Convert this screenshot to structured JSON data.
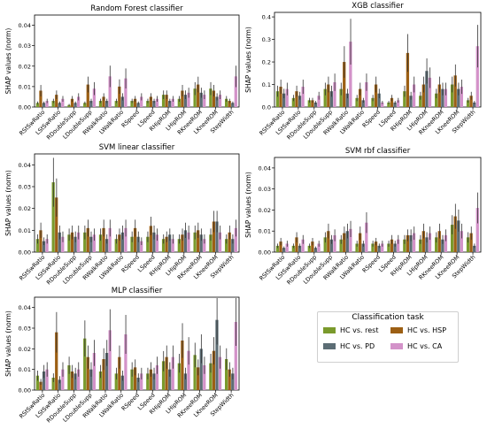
{
  "legend": {
    "title": "Classification task",
    "items": [
      {
        "label": "HC vs. rest",
        "color": "#7a9a2c"
      },
      {
        "label": "HC vs. HSP",
        "color": "#9c5f14"
      },
      {
        "label": "HC vs. PD",
        "color": "#5c6d75"
      },
      {
        "label": "HC vs. CA",
        "color": "#d392c9"
      }
    ]
  },
  "chart_data": [
    {
      "type": "bar",
      "title": "Random Forest classifier",
      "ylabel": "SHAP values (norm)",
      "ylim": [
        0,
        0.045
      ],
      "yticks": [
        0.0,
        0.01,
        0.02,
        0.03,
        0.04
      ],
      "categories": [
        "RStSwRatio",
        "LStSwRatio",
        "RDoubleSupp",
        "LDoubleSupp",
        "RWalkRatio",
        "LWalkRatio",
        "RSpeed",
        "LSpeed",
        "RHipROM",
        "LHipROM",
        "RKneeROM",
        "LKneeROM",
        "StepWidth"
      ],
      "series": [
        {
          "name": "HC vs. rest",
          "values": [
            0.002,
            0.003,
            0.001,
            0.002,
            0.003,
            0.003,
            0.003,
            0.003,
            0.006,
            0.004,
            0.009,
            0.009,
            0.004
          ]
        },
        {
          "name": "HC vs. HSP",
          "values": [
            0.008,
            0.006,
            0.004,
            0.011,
            0.005,
            0.01,
            0.004,
            0.005,
            0.006,
            0.008,
            0.011,
            0.008,
            0.003
          ]
        },
        {
          "name": "HC vs. PD",
          "values": [
            0.002,
            0.002,
            0.002,
            0.003,
            0.003,
            0.005,
            0.002,
            0.003,
            0.003,
            0.006,
            0.007,
            0.005,
            0.002
          ]
        },
        {
          "name": "HC vs. CA",
          "values": [
            0.003,
            0.004,
            0.005,
            0.009,
            0.015,
            0.014,
            0.005,
            0.004,
            0.004,
            0.007,
            0.006,
            0.006,
            0.015
          ]
        }
      ]
    },
    {
      "type": "bar",
      "title": "XGB classifier",
      "ylabel": "SHAP values (norm)",
      "ylim": [
        0,
        0.42
      ],
      "yticks": [
        0.0,
        0.1,
        0.2,
        0.3,
        0.4
      ],
      "categories": [
        "RStSwRatio",
        "LStSwRatio",
        "RDoubleSupp",
        "LDoubleSupp",
        "RWalkRatio",
        "LWalkRatio",
        "RSpeed",
        "LSpeed",
        "RHipROM",
        "LHipROM",
        "RKneeROM",
        "LKneeROM",
        "StepWidth"
      ],
      "series": [
        {
          "name": "HC vs. rest",
          "values": [
            0.07,
            0.04,
            0.03,
            0.08,
            0.08,
            0.04,
            0.04,
            0.02,
            0.07,
            0.05,
            0.06,
            0.1,
            0.03
          ]
        },
        {
          "name": "HC vs. HSP",
          "values": [
            0.09,
            0.07,
            0.03,
            0.1,
            0.2,
            0.08,
            0.1,
            0.04,
            0.24,
            0.1,
            0.1,
            0.14,
            0.05
          ]
        },
        {
          "name": "HC vs. PD",
          "values": [
            0.06,
            0.05,
            0.02,
            0.07,
            0.06,
            0.03,
            0.06,
            0.02,
            0.05,
            0.16,
            0.08,
            0.08,
            0.02
          ]
        },
        {
          "name": "HC vs. CA",
          "values": [
            0.08,
            0.09,
            0.05,
            0.11,
            0.29,
            0.11,
            0.02,
            0.03,
            0.1,
            0.13,
            0.08,
            0.09,
            0.27
          ]
        }
      ]
    },
    {
      "type": "bar",
      "title": "SVM linear classifier",
      "ylabel": "SHAP values (norm)",
      "ylim": [
        0,
        0.045
      ],
      "yticks": [
        0.0,
        0.01,
        0.02,
        0.03,
        0.04
      ],
      "categories": [
        "RStSwRatio",
        "LStSwRatio",
        "RDoubleSupp",
        "LDoubleSupp",
        "RWalkRatio",
        "LWalkRatio",
        "RSpeed",
        "LSpeed",
        "RHipROM",
        "LHipROM",
        "RKneeROM",
        "LKneeROM",
        "StepWidth"
      ],
      "series": [
        {
          "name": "HC vs. rest",
          "values": [
            0.006,
            0.032,
            0.008,
            0.009,
            0.008,
            0.006,
            0.007,
            0.007,
            0.006,
            0.006,
            0.009,
            0.008,
            0.006
          ]
        },
        {
          "name": "HC vs. HSP",
          "values": [
            0.01,
            0.025,
            0.009,
            0.011,
            0.011,
            0.008,
            0.011,
            0.012,
            0.007,
            0.008,
            0.01,
            0.014,
            0.009
          ]
        },
        {
          "name": "HC vs. PD",
          "values": [
            0.005,
            0.009,
            0.007,
            0.007,
            0.006,
            0.009,
            0.007,
            0.009,
            0.008,
            0.01,
            0.008,
            0.014,
            0.006
          ]
        },
        {
          "name": "HC vs. CA",
          "values": [
            0.006,
            0.007,
            0.009,
            0.008,
            0.011,
            0.011,
            0.005,
            0.008,
            0.006,
            0.009,
            0.006,
            0.009,
            0.011
          ]
        }
      ]
    },
    {
      "type": "bar",
      "title": "SVM rbf classifier",
      "ylabel": "SHAP values (norm)",
      "ylim": [
        0,
        0.045
      ],
      "yticks": [
        0.0,
        0.01,
        0.02,
        0.03,
        0.04
      ],
      "categories": [
        "RStSwRatio",
        "LStSwRatio",
        "RDoubleSupp",
        "LDoubleSupp",
        "RWalkRatio",
        "LWalkRatio",
        "RSpeed",
        "LSpeed",
        "RHipROM",
        "LHipROM",
        "RKneeROM",
        "LKneeROM",
        "StepWidth"
      ],
      "series": [
        {
          "name": "HC vs. rest",
          "values": [
            0.003,
            0.003,
            0.003,
            0.007,
            0.006,
            0.004,
            0.004,
            0.004,
            0.006,
            0.006,
            0.007,
            0.013,
            0.007
          ]
        },
        {
          "name": "HC vs. HSP",
          "values": [
            0.005,
            0.007,
            0.005,
            0.01,
            0.009,
            0.009,
            0.005,
            0.006,
            0.008,
            0.01,
            0.01,
            0.017,
            0.009
          ]
        },
        {
          "name": "HC vs. PD",
          "values": [
            0.002,
            0.003,
            0.002,
            0.006,
            0.01,
            0.004,
            0.003,
            0.004,
            0.008,
            0.007,
            0.006,
            0.015,
            0.003
          ]
        },
        {
          "name": "HC vs. CA",
          "values": [
            0.004,
            0.006,
            0.004,
            0.008,
            0.011,
            0.014,
            0.004,
            0.006,
            0.009,
            0.009,
            0.008,
            0.01,
            0.021
          ]
        }
      ]
    },
    {
      "type": "bar",
      "title": "MLP classifier",
      "ylabel": "SHAP values (norm)",
      "ylim": [
        0,
        0.045
      ],
      "yticks": [
        0.0,
        0.01,
        0.02,
        0.03,
        0.04
      ],
      "categories": [
        "RStSwRatio",
        "LStSwRatio",
        "RDoubleSupp",
        "LDoubleSupp",
        "RWalkRatio",
        "LWalkRatio",
        "RSpeed",
        "LSpeed",
        "RHipROM",
        "LHipROM",
        "RKneeROM",
        "LKneeROM",
        "StepWidth"
      ],
      "series": [
        {
          "name": "HC vs. rest",
          "values": [
            0.007,
            0.006,
            0.012,
            0.025,
            0.009,
            0.008,
            0.01,
            0.008,
            0.014,
            0.013,
            0.017,
            0.013,
            0.015
          ]
        },
        {
          "name": "HC vs. HSP",
          "values": [
            0.004,
            0.028,
            0.009,
            0.016,
            0.015,
            0.016,
            0.011,
            0.01,
            0.016,
            0.024,
            0.011,
            0.019,
            0.01
          ]
        },
        {
          "name": "HC vs. PD",
          "values": [
            0.009,
            0.005,
            0.008,
            0.01,
            0.018,
            0.007,
            0.006,
            0.008,
            0.01,
            0.008,
            0.02,
            0.034,
            0.008
          ]
        },
        {
          "name": "HC vs. CA",
          "values": [
            0.01,
            0.01,
            0.01,
            0.018,
            0.029,
            0.027,
            0.008,
            0.012,
            0.016,
            0.019,
            0.012,
            0.016,
            0.033
          ]
        }
      ]
    }
  ]
}
